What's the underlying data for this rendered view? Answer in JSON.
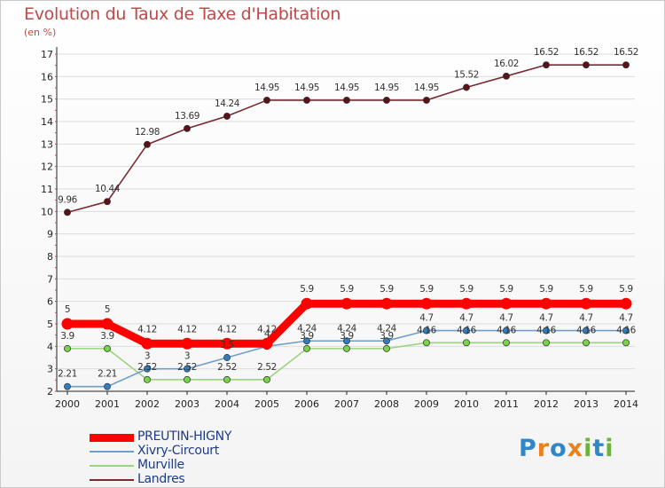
{
  "header": {
    "title": "Evolution du Taux de Taxe d'Habitation",
    "subtitle": "(en %)"
  },
  "logo": {
    "letters": [
      "P",
      "r",
      "o",
      "x",
      "i",
      "t",
      "i"
    ],
    "colors": [
      "#2f87c8",
      "#e8821e",
      "#2f87c8",
      "#e8821e",
      "#6cb33e",
      "#2f87c8",
      "#6cb33e"
    ]
  },
  "chart_data": {
    "type": "line",
    "title": "Evolution du Taux de Taxe d'Habitation",
    "ylabel": "(en %)",
    "xlabel": "",
    "ylim": [
      2,
      17
    ],
    "yticks": [
      2,
      3,
      4,
      5,
      6,
      7,
      8,
      9,
      10,
      11,
      12,
      13,
      14,
      15,
      16,
      17
    ],
    "categories": [
      "2000",
      "2001",
      "2002",
      "2003",
      "2004",
      "2005",
      "2006",
      "2007",
      "2008",
      "2009",
      "2010",
      "2011",
      "2012",
      "2013",
      "2014"
    ],
    "series": [
      {
        "name": "PREUTIN-HIGNY",
        "color": "#ff0000",
        "marker": "#ff0000",
        "values": [
          5,
          5,
          4.12,
          4.12,
          4.12,
          4.12,
          5.9,
          5.9,
          5.9,
          5.9,
          5.9,
          5.9,
          5.9,
          5.9,
          5.9
        ],
        "labels": [
          "5",
          "5",
          "4.12",
          "4.12",
          "4.12",
          "4.12",
          "5.9",
          "5.9",
          "5.9",
          "5.9",
          "5.9",
          "5.9",
          "5.9",
          "5.9",
          "5.9"
        ]
      },
      {
        "name": "Xivry-Circourt",
        "color": "#6f9ecb",
        "marker": "#2f7fc0",
        "values": [
          2.21,
          2.21,
          3,
          3,
          3.5,
          4,
          4.24,
          4.24,
          4.24,
          4.7,
          4.7,
          4.7,
          4.7,
          4.7,
          4.7
        ],
        "labels": [
          "2.21",
          "2.21",
          "3",
          "3",
          "3.5",
          "4",
          "4.24",
          "4.24",
          "4.24",
          "4.7",
          "4.7",
          "4.7",
          "4.7",
          "4.7",
          "4.7"
        ]
      },
      {
        "name": "Murville",
        "color": "#9ad47f",
        "marker": "#76d34a",
        "values": [
          3.9,
          3.9,
          2.52,
          2.52,
          2.52,
          2.52,
          3.9,
          3.9,
          3.9,
          4.16,
          4.16,
          4.16,
          4.16,
          4.16,
          4.16
        ],
        "labels": [
          "3.9",
          "3.9",
          "2.52",
          "2.52",
          "2.52",
          "2.52",
          "3.9",
          "3.9",
          "3.9",
          "4.16",
          "4.16",
          "4.16",
          "4.16",
          "4.16",
          "4.16"
        ]
      },
      {
        "name": "Landres",
        "color": "#7a2a30",
        "marker": "#5a1218",
        "values": [
          9.96,
          10.44,
          12.98,
          13.69,
          14.24,
          14.95,
          14.95,
          14.95,
          14.95,
          14.95,
          15.52,
          16.02,
          16.52,
          16.52,
          16.52
        ],
        "labels": [
          "9.96",
          "10.44",
          "12.98",
          "13.69",
          "14.24",
          "14.95",
          "14.95",
          "14.95",
          "14.95",
          "14.95",
          "15.52",
          "16.02",
          "16.52",
          "16.52",
          "16.52"
        ]
      }
    ]
  }
}
